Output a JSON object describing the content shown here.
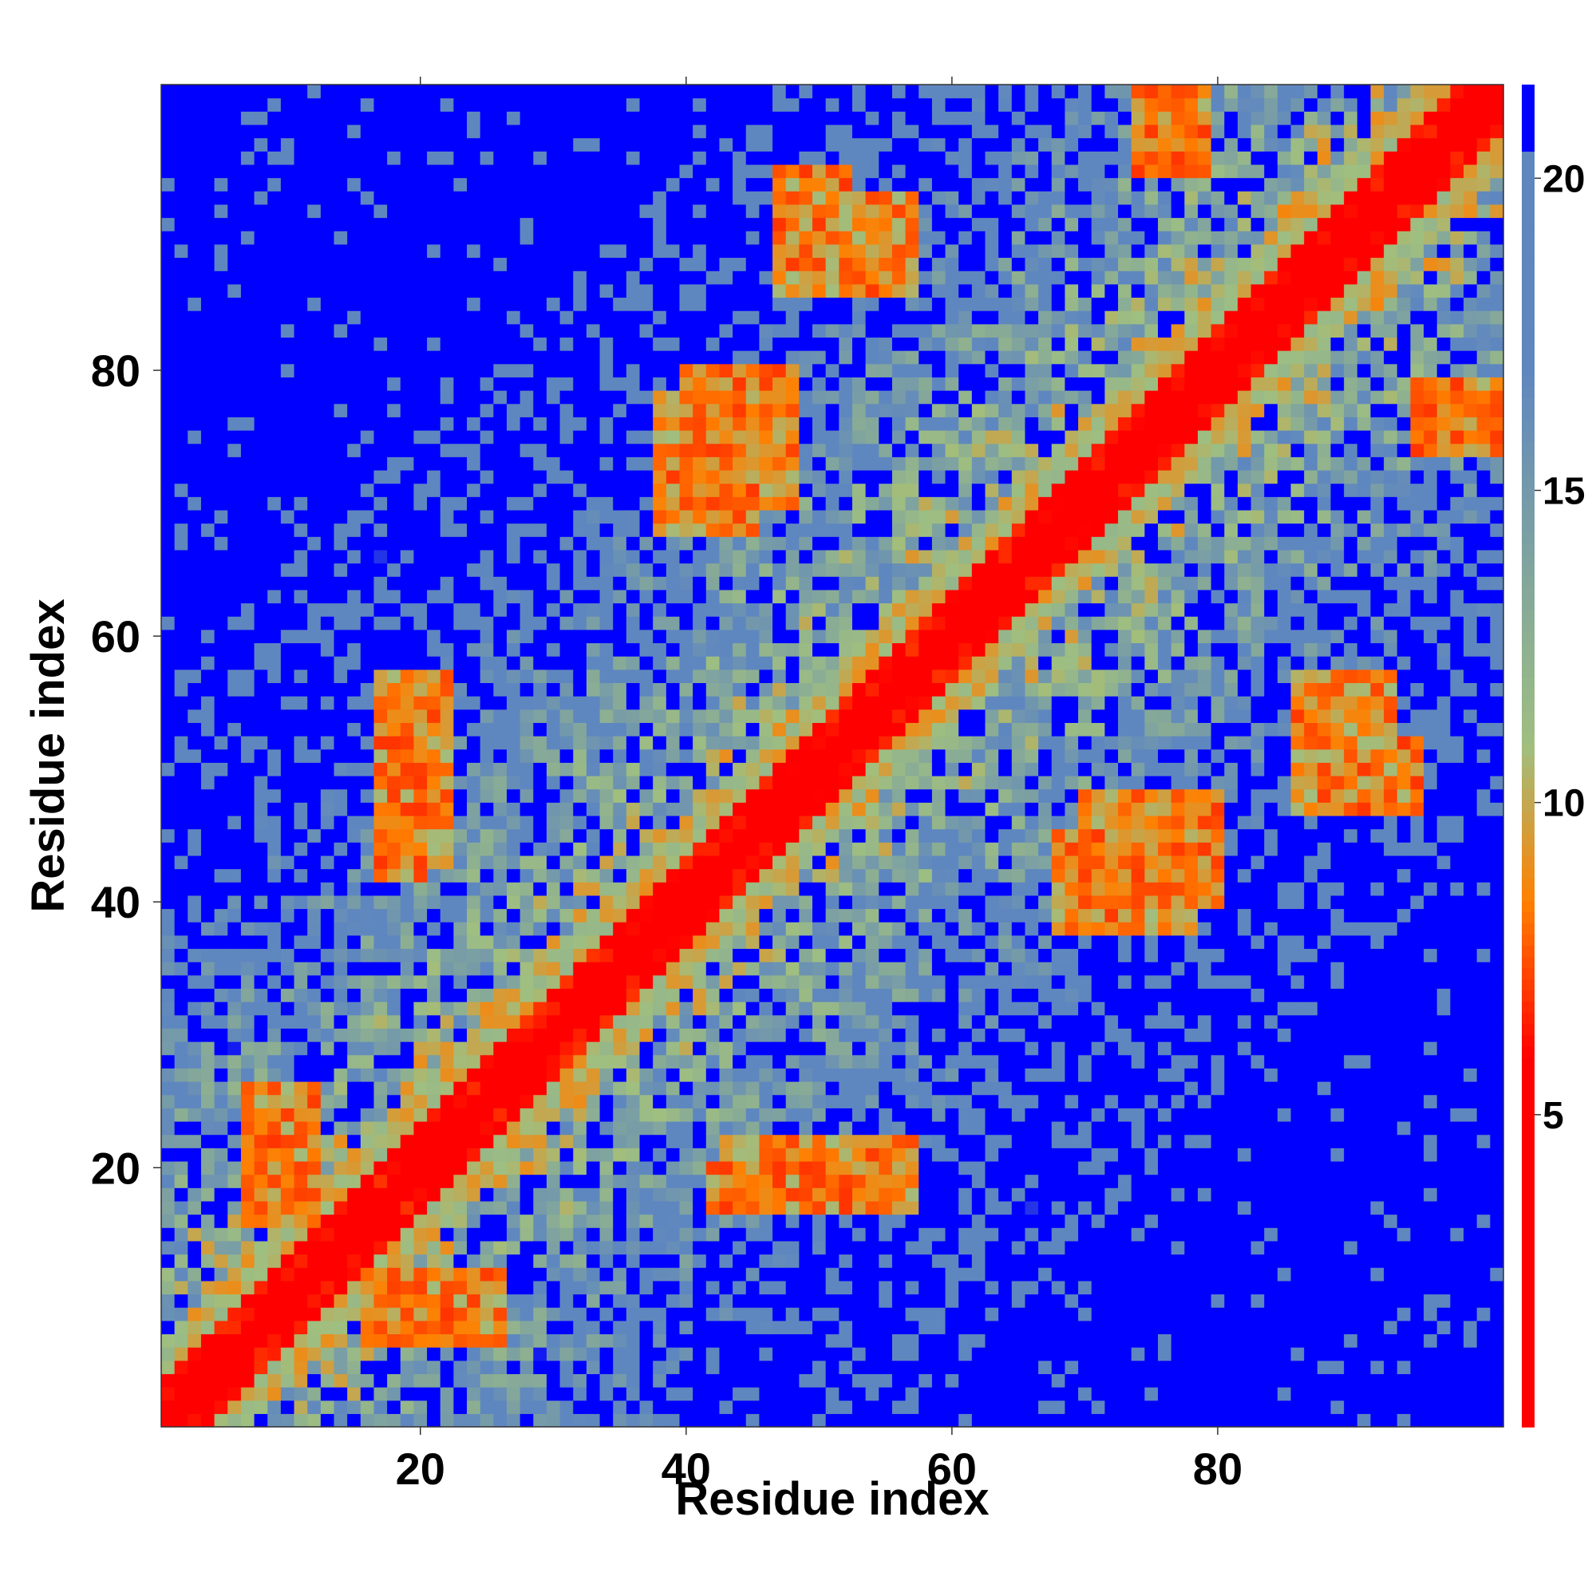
{
  "chart_data": {
    "type": "heatmap",
    "title": "",
    "xlabel": "Residue index",
    "ylabel": "Residue index",
    "n_residues": 101,
    "xlim": [
      1,
      101
    ],
    "ylim": [
      1,
      101
    ],
    "x_ticks": [
      20,
      40,
      60,
      80
    ],
    "y_ticks": [
      20,
      40,
      60,
      80
    ],
    "colorbar": {
      "range": [
        0,
        21.5
      ],
      "ticks": [
        5,
        10,
        15,
        20
      ],
      "colors": {
        "low": "#ff0000",
        "mid_low": "#ff8000",
        "mid": "#9fbf80",
        "mid_high": "#5f87bf",
        "high": "#0000ff"
      }
    },
    "contact_features": [
      {
        "label": "diagonal",
        "residues_i": [
          1,
          101
        ],
        "residues_j": [
          1,
          101
        ],
        "distance": 2
      },
      {
        "label": "off-diagonal band",
        "residues_i": [
          38,
          45
        ],
        "residues_j": [
          68,
          78
        ],
        "distance": 7
      },
      {
        "label": "off-diagonal band",
        "residues_i": [
          70,
          80
        ],
        "residues_j": [
          40,
          48
        ],
        "distance": 7
      },
      {
        "label": "off-diagonal band",
        "residues_i": [
          74,
          79
        ],
        "residues_j": [
          95,
          101
        ],
        "distance": 7
      },
      {
        "label": "off-diagonal band",
        "residues_i": [
          95,
          101
        ],
        "residues_j": [
          74,
          79
        ],
        "distance": 7
      },
      {
        "label": "contact cluster",
        "residues_i": [
          47,
          52
        ],
        "residues_j": [
          86,
          95
        ],
        "distance": 7
      },
      {
        "label": "contact cluster",
        "residues_i": [
          86,
          93
        ],
        "residues_j": [
          52,
          57
        ],
        "distance": 7
      },
      {
        "label": "contact cluster",
        "residues_i": [
          43,
          57
        ],
        "residues_j": [
          17,
          22
        ],
        "distance": 7
      },
      {
        "label": "contact cluster",
        "residues_i": [
          17,
          20
        ],
        "residues_j": [
          42,
          56
        ],
        "distance": 7
      },
      {
        "label": "contact cluster",
        "residues_i": [
          7,
          12
        ],
        "residues_j": [
          16,
          23
        ],
        "distance": 7
      },
      {
        "label": "contact cluster",
        "residues_i": [
          16,
          26
        ],
        "residues_j": [
          7,
          12
        ],
        "distance": 7
      }
    ]
  }
}
